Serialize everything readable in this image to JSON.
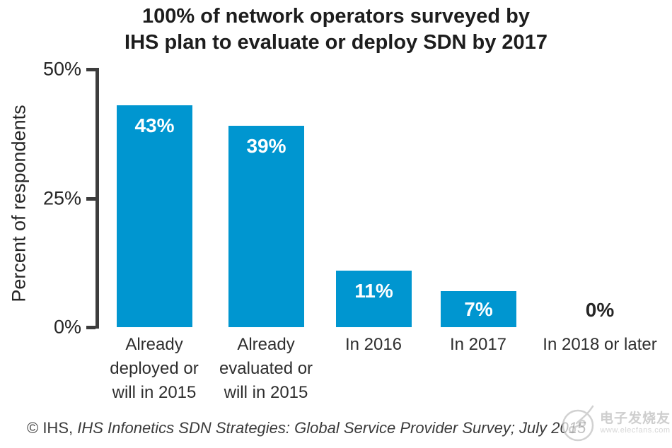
{
  "title": {
    "line1": "100% of network operators surveyed by",
    "line2": "IHS plan to evaluate or deploy SDN by 2017"
  },
  "chart_data": {
    "type": "bar",
    "title": "100% of network operators surveyed by IHS plan to evaluate or deploy SDN by 2017",
    "xlabel": "",
    "ylabel": "Percent of respondents",
    "ylim": [
      0,
      50
    ],
    "grid": false,
    "legend": null,
    "bar_color": "#0096d0",
    "yticks": [
      {
        "value": 0,
        "label": "0%"
      },
      {
        "value": 25,
        "label": "25%"
      },
      {
        "value": 50,
        "label": "50%"
      }
    ],
    "categories": [
      "Already\ndeployed or\nwill in 2015",
      "Already\nevaluated or\nwill in 2015",
      "In 2016",
      "In 2017",
      "In 2018 or later"
    ],
    "values": [
      43,
      39,
      11,
      7,
      0
    ],
    "value_labels": [
      "43%",
      "39%",
      "11%",
      "7%",
      "0%"
    ]
  },
  "footer": {
    "prefix": "© IHS, ",
    "source": "IHS Infonetics SDN Strategies: Global Service Provider Survey; July 2015"
  },
  "watermark": {
    "site_name": "电子发烧友",
    "site_url": "www.elecfans.com"
  }
}
